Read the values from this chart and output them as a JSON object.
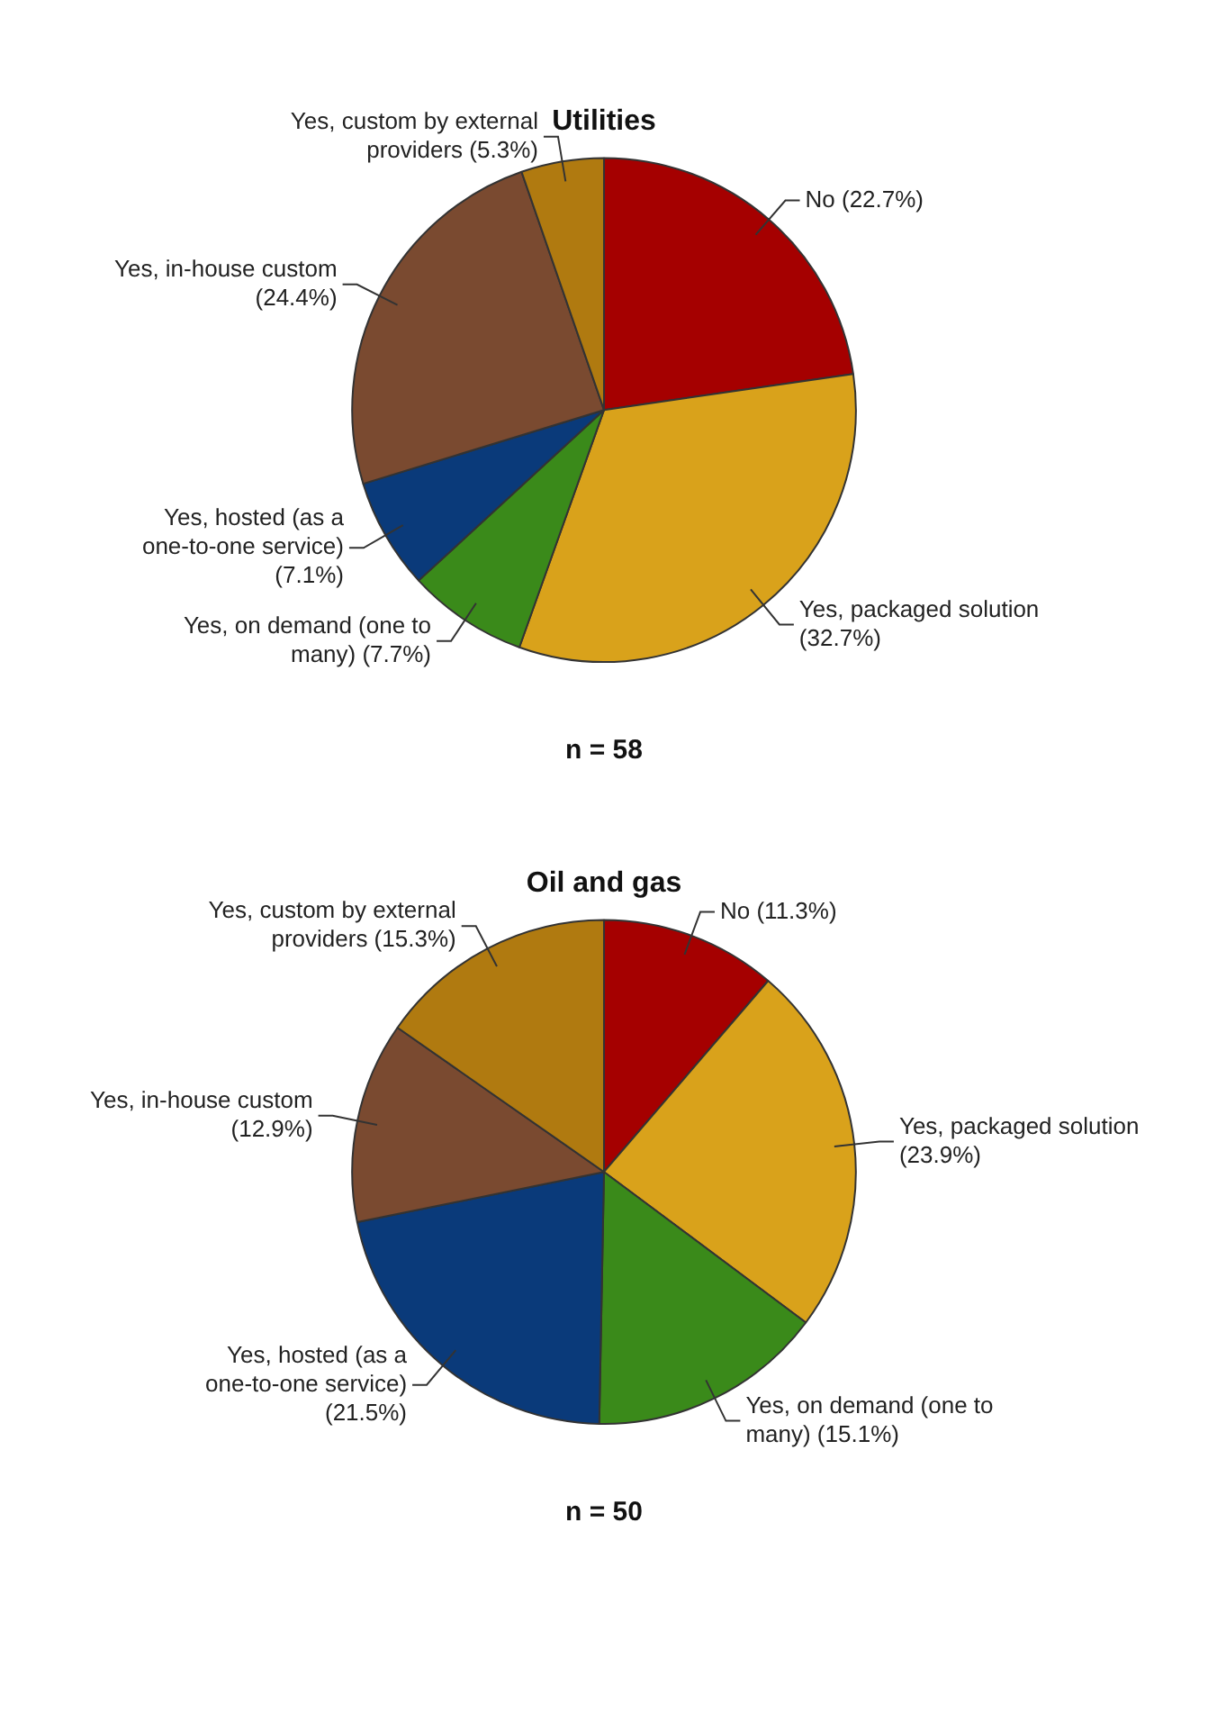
{
  "chart_data": [
    {
      "type": "pie",
      "title": "Utilities",
      "categories": [
        "No",
        "Yes, packaged solution",
        "Yes, on demand (one to many)",
        "Yes, hosted (as a one-to-one service)",
        "Yes, in-house custom",
        "Yes, custom by external providers"
      ],
      "values": [
        22.7,
        32.7,
        7.7,
        7.1,
        24.4,
        5.3
      ],
      "value_labels": [
        "(22.7%)",
        "(32.7%)",
        "(7.7%)",
        "(7.1%)",
        "(24.4%)",
        "(5.3%)"
      ],
      "colors": [
        "#a50000",
        "#d9a21b",
        "#3a8a1a",
        "#0a3a7a",
        "#7a4a30",
        "#b07a10"
      ],
      "legend": false,
      "annotations": [
        "n = 58"
      ]
    },
    {
      "type": "pie",
      "title": "Oil and gas",
      "categories": [
        "No",
        "Yes, packaged solution",
        "Yes, on demand (one to many)",
        "Yes, hosted (as a one-to-one service)",
        "Yes, in-house custom",
        "Yes, custom by external providers"
      ],
      "values": [
        11.3,
        23.9,
        15.1,
        21.5,
        12.9,
        15.3
      ],
      "value_labels": [
        "(11.3%)",
        "(23.9%)",
        "(15.1%)",
        "(21.5%)",
        "(12.9%)",
        "(15.3%)"
      ],
      "colors": [
        "#a50000",
        "#d9a21b",
        "#3a8a1a",
        "#0a3a7a",
        "#7a4a30",
        "#b07a10"
      ],
      "legend": false,
      "annotations": [
        "n = 50"
      ]
    }
  ]
}
